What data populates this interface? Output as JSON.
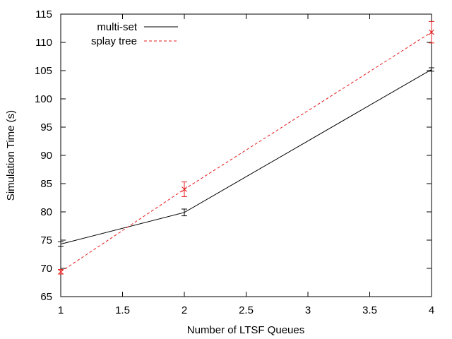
{
  "chart_data": {
    "type": "line",
    "xlabel": "Number of LTSF Queues",
    "ylabel": "Simulation Time (s)",
    "xlim": [
      1,
      4
    ],
    "ylim": [
      65,
      115
    ],
    "x_ticks": [
      "1",
      "1.5",
      "2",
      "2.5",
      "3",
      "3.5",
      "4"
    ],
    "y_ticks": [
      "65",
      "70",
      "75",
      "80",
      "85",
      "90",
      "95",
      "100",
      "105",
      "110",
      "115"
    ],
    "grid": false,
    "legend_position": "top-left",
    "series": [
      {
        "name": "multi-set",
        "color": "#000000",
        "line_style": "solid",
        "marker": "none",
        "x": [
          1,
          2,
          4
        ],
        "y": [
          74.3,
          79.9,
          105.2
        ],
        "err": [
          0.4,
          0.6,
          0.3
        ]
      },
      {
        "name": "splay tree",
        "color": "#e41a1c",
        "line_style": "dashed",
        "marker": "x",
        "x": [
          1,
          2,
          4
        ],
        "y": [
          69.4,
          84.0,
          111.8
        ],
        "err": [
          0.4,
          1.3,
          1.9
        ]
      }
    ]
  }
}
